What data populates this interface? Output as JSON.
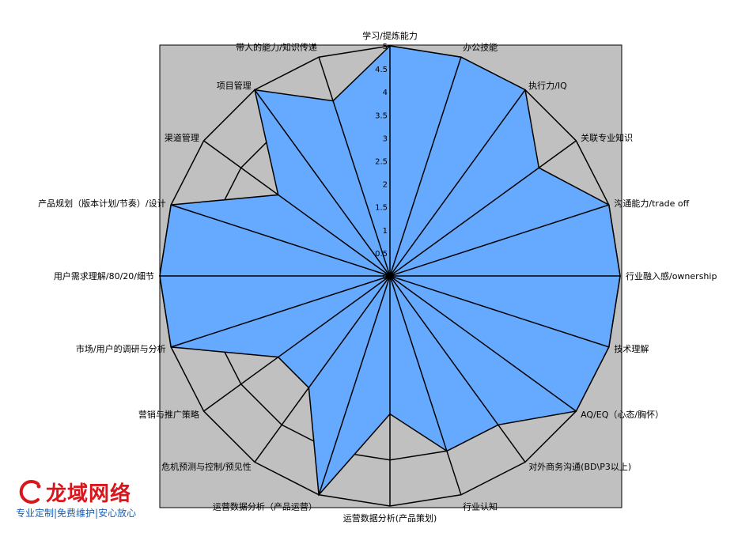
{
  "chart_data": {
    "type": "radar",
    "axes": [
      "学习/提炼能力",
      "办公技能",
      "执行力/IQ",
      "关联专业知识",
      "沟通能力/trade off",
      "行业融入感/ownership",
      "技术理解",
      "AQ/EQ（心态/胸怀）",
      "对外商务沟通(BD\\P3以上)",
      "行业认知",
      "运营数据分析(产品策划)",
      "运营数据分析（产品运营）",
      "危机预测与控制/预见性",
      "营销与推广策略",
      "市场/用户的调研与分析",
      "用户需求理解/80/20/细节",
      "产品规划（版本计划/节奏）/设计",
      "渠道管理",
      "项目管理",
      "带人的能力/知识传递"
    ],
    "values": [
      5,
      5,
      5,
      4,
      5,
      5,
      5,
      5,
      4,
      4,
      3,
      5,
      3,
      3,
      5,
      5,
      5,
      3,
      5,
      4
    ],
    "rmin": 0,
    "rmax": 5,
    "ticks": [
      "0",
      "0.5",
      "1",
      "1.5",
      "2",
      "2.5",
      "3",
      "3.5",
      "4",
      "4.5",
      "5"
    ],
    "grid_rings": [
      1,
      2,
      3,
      4,
      5
    ],
    "colors": {
      "fill": "#66aaff",
      "plot_background": "#c0c0c0",
      "line": "#000000"
    }
  },
  "watermark": {
    "brand": "龙域网络",
    "tagline": "专业定制|免费维护|安心放心",
    "icon": "dragon-c-logo-icon"
  }
}
